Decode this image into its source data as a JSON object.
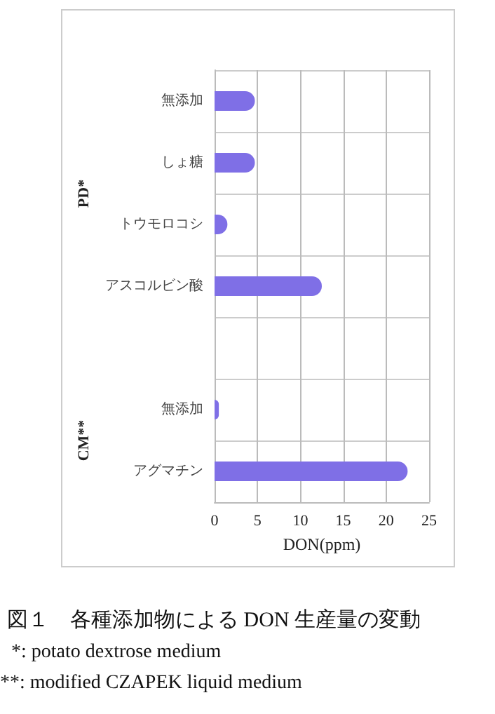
{
  "chart_data": {
    "type": "bar",
    "orientation": "horizontal",
    "title": "図１　各種添加物による DON 生産量の変動",
    "xlabel": "DON(ppm)",
    "categories": [
      "無添加",
      "しょ糖",
      "トウモロコシ",
      "アスコルビン酸",
      null,
      "無添加",
      "アグマチン"
    ],
    "values": [
      4.7,
      4.7,
      1.5,
      12.5,
      null,
      0.5,
      22.5
    ],
    "color": "#7f6fe6",
    "xlim": [
      0,
      25
    ],
    "xticks": [
      0,
      5,
      10,
      15,
      20,
      25
    ],
    "grid": "x",
    "annotations": [
      "PD*",
      "CM**",
      "*: potato dextrose medium",
      "**: modified CZAPEK liquid medium"
    ]
  }
}
